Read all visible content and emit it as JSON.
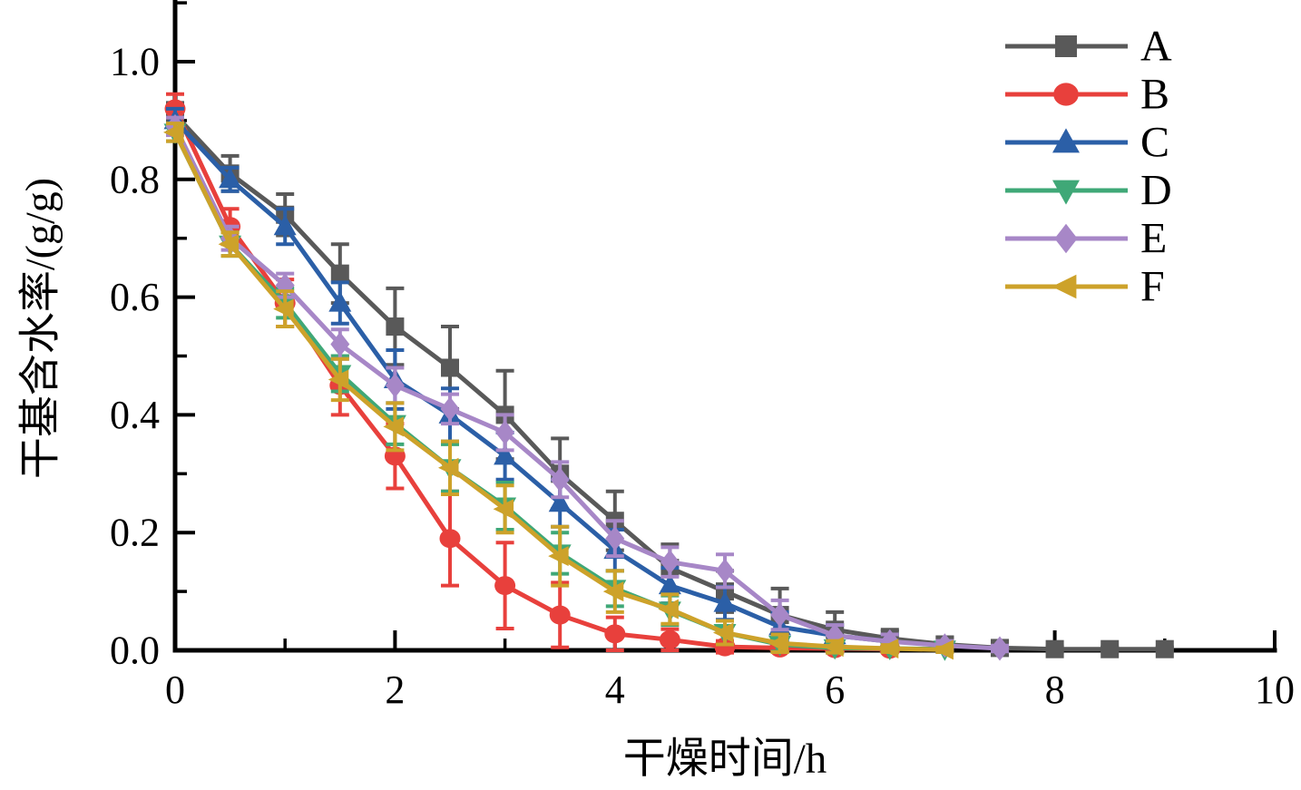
{
  "figure": {
    "background": "#ffffff"
  },
  "chart_data": {
    "type": "line",
    "title": "",
    "xlabel": "干燥时间/h",
    "ylabel": "干基含水率/(g/g)",
    "xlim": [
      0,
      10
    ],
    "ylim": [
      0,
      1.1
    ],
    "grid": false,
    "error_bars": true,
    "legend_position": "top-right",
    "x_major_ticks": [
      0,
      2,
      4,
      6,
      8,
      10
    ],
    "x_minor_ticks": [
      1,
      3,
      5,
      7,
      9
    ],
    "x_tick_labels": [
      "0",
      "2",
      "4",
      "6",
      "8",
      "10"
    ],
    "y_major_ticks": [
      0,
      0.2,
      0.4,
      0.6,
      0.8,
      1.0
    ],
    "y_minor_ticks": [
      0.1,
      0.3,
      0.5,
      0.7,
      0.9,
      1.1
    ],
    "y_tick_labels": [
      "0.0",
      "0.2",
      "0.4",
      "0.6",
      "0.8",
      "1.0"
    ],
    "legend_labels": [
      "A",
      "B",
      "C",
      "D",
      "E",
      "F"
    ],
    "series": [
      {
        "name": "A",
        "color": "#595959",
        "marker": "square",
        "x": [
          0,
          0.5,
          1,
          1.5,
          2,
          2.5,
          3,
          3.5,
          4,
          4.5,
          5,
          5.5,
          6,
          6.5,
          7,
          7.5,
          8,
          8.5,
          9
        ],
        "y": [
          0.91,
          0.81,
          0.74,
          0.64,
          0.55,
          0.48,
          0.4,
          0.3,
          0.22,
          0.14,
          0.1,
          0.06,
          0.035,
          0.02,
          0.01,
          0.004,
          0.002,
          0.002,
          0.002
        ],
        "err": [
          0.02,
          0.03,
          0.035,
          0.05,
          0.065,
          0.07,
          0.075,
          0.06,
          0.05,
          0.04,
          0.035,
          0.045,
          0.03,
          0.015,
          0.012,
          0.008,
          0.004,
          0.003,
          0.003
        ]
      },
      {
        "name": "B",
        "color": "#e8403c",
        "marker": "circle",
        "x": [
          0,
          0.5,
          1,
          1.5,
          2,
          2.5,
          3,
          3.5,
          4,
          4.5,
          5,
          5.5,
          6,
          6.5
        ],
        "y": [
          0.92,
          0.72,
          0.59,
          0.45,
          0.33,
          0.19,
          0.11,
          0.06,
          0.028,
          0.018,
          0.006,
          0.004,
          0.003,
          0.002
        ],
        "err": [
          0.025,
          0.03,
          0.04,
          0.05,
          0.055,
          0.08,
          0.073,
          0.055,
          0.028,
          0.018,
          0.01,
          0.006,
          0.005,
          0.004
        ]
      },
      {
        "name": "C",
        "color": "#2b5fa7",
        "marker": "triangle-up",
        "x": [
          0,
          0.5,
          1,
          1.5,
          2,
          2.5,
          3,
          3.5,
          4,
          4.5,
          5,
          5.5,
          6,
          6.5
        ],
        "y": [
          0.9,
          0.8,
          0.72,
          0.59,
          0.46,
          0.4,
          0.33,
          0.25,
          0.17,
          0.11,
          0.08,
          0.04,
          0.025,
          0.015
        ],
        "err": [
          0.02,
          0.02,
          0.03,
          0.035,
          0.05,
          0.045,
          0.04,
          0.04,
          0.035,
          0.03,
          0.028,
          0.025,
          0.018,
          0.012
        ]
      },
      {
        "name": "D",
        "color": "#3fa877",
        "marker": "triangle-down",
        "x": [
          0,
          0.5,
          1,
          1.5,
          2,
          2.5,
          3,
          3.5,
          4,
          4.5,
          5,
          5.5,
          6,
          6.5,
          7
        ],
        "y": [
          0.88,
          0.69,
          0.59,
          0.47,
          0.385,
          0.31,
          0.245,
          0.165,
          0.105,
          0.068,
          0.03,
          0.01,
          0.004,
          0.003,
          0.002
        ],
        "err": [
          0.015,
          0.02,
          0.025,
          0.03,
          0.035,
          0.04,
          0.04,
          0.035,
          0.03,
          0.025,
          0.02,
          0.012,
          0.008,
          0.005,
          0.004
        ]
      },
      {
        "name": "E",
        "color": "#a787c7",
        "marker": "diamond",
        "x": [
          0,
          0.5,
          1,
          1.5,
          2,
          2.5,
          3,
          3.5,
          4,
          4.5,
          5,
          5.5,
          6,
          6.5,
          7,
          7.5
        ],
        "y": [
          0.89,
          0.7,
          0.62,
          0.52,
          0.45,
          0.41,
          0.37,
          0.29,
          0.19,
          0.15,
          0.135,
          0.06,
          0.025,
          0.015,
          0.008,
          0.003
        ],
        "err": [
          0.015,
          0.02,
          0.02,
          0.025,
          0.03,
          0.025,
          0.03,
          0.03,
          0.03,
          0.025,
          0.028,
          0.025,
          0.018,
          0.012,
          0.008,
          0.005
        ]
      },
      {
        "name": "F",
        "color": "#cda22a",
        "marker": "triangle-left",
        "x": [
          0,
          0.5,
          1,
          1.5,
          2,
          2.5,
          3,
          3.5,
          4,
          4.5,
          5,
          5.5,
          6,
          6.5,
          7
        ],
        "y": [
          0.88,
          0.69,
          0.58,
          0.46,
          0.38,
          0.31,
          0.24,
          0.16,
          0.1,
          0.07,
          0.03,
          0.012,
          0.006,
          0.003,
          0.001
        ],
        "err": [
          0.015,
          0.02,
          0.03,
          0.035,
          0.04,
          0.045,
          0.04,
          0.05,
          0.035,
          0.025,
          0.02,
          0.015,
          0.01,
          0.006,
          0.004
        ]
      }
    ]
  }
}
